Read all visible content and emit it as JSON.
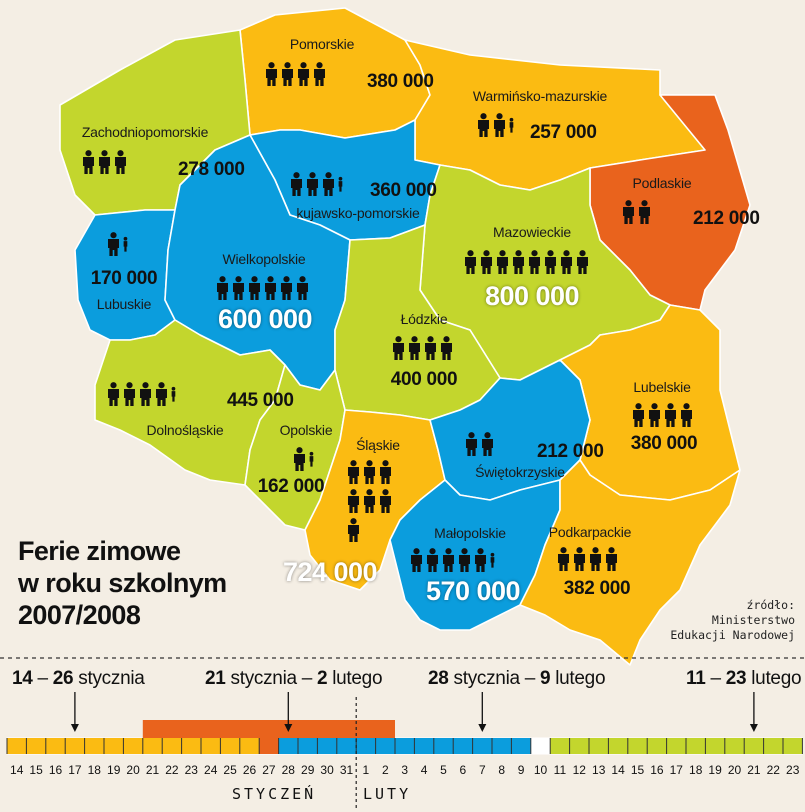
{
  "colors": {
    "yellow": "#fbbb12",
    "orange": "#e9631d",
    "blue": "#0b9ddd",
    "green": "#c3d62d",
    "ink": "#111111"
  },
  "title": {
    "line1": "Ferie zimowe",
    "line2": "w roku szkolnym",
    "line3": "2007/2008"
  },
  "source": {
    "line1": "źródło:",
    "line2": "Ministerstwo",
    "line3": "Edukacji Narodowej"
  },
  "regions": [
    {
      "id": "pomorskie",
      "name": "Pomorskie",
      "value": "380 000",
      "icons": 4,
      "color": "yellow"
    },
    {
      "id": "warminsko",
      "name": "Warmińsko-mazurskie",
      "value": "257 000",
      "icons": 2.5,
      "color": "yellow"
    },
    {
      "id": "zachodnio",
      "name": "Zachodniopomorskie",
      "value": "278 000",
      "icons": 3,
      "color": "green"
    },
    {
      "id": "kujawsko",
      "name": "kujawsko-pomorskie",
      "value": "360 000",
      "icons": 3.5,
      "color": "blue"
    },
    {
      "id": "podlaskie",
      "name": "Podlaskie",
      "value": "212 000",
      "icons": 2,
      "color": "orange"
    },
    {
      "id": "lubuskie",
      "name": "Lubuskie",
      "value": "170 000",
      "icons": 1.5,
      "color": "blue"
    },
    {
      "id": "wielkopolskie",
      "name": "Wielkopolskie",
      "value": "600 000",
      "icons": 6,
      "color": "blue"
    },
    {
      "id": "mazowieckie",
      "name": "Mazowieckie",
      "value": "800 000",
      "icons": 8,
      "color": "green"
    },
    {
      "id": "lodzkie",
      "name": "Łódzkie",
      "value": "400 000",
      "icons": 4,
      "color": "green"
    },
    {
      "id": "dolnoslaskie",
      "name": "Dolnośląskie",
      "value": "445 000",
      "icons": 4.5,
      "color": "green"
    },
    {
      "id": "lubelskie",
      "name": "Lubelskie",
      "value": "380 000",
      "icons": 4,
      "color": "yellow"
    },
    {
      "id": "opolskie",
      "name": "Opolskie",
      "value": "162 000",
      "icons": 1.5,
      "color": "green"
    },
    {
      "id": "slaskie",
      "name": "Śląskie",
      "value": "724 000",
      "icons": 7,
      "color": "yellow"
    },
    {
      "id": "swietokrzyskie",
      "name": "Świętokrzyskie",
      "value": "212 000",
      "icons": 2,
      "color": "blue"
    },
    {
      "id": "malopolskie",
      "name": "Małopolskie",
      "value": "570 000",
      "icons": 5.5,
      "color": "blue"
    },
    {
      "id": "podkarpackie",
      "name": "Podkarpackie",
      "value": "382 000",
      "icons": 4,
      "color": "yellow"
    }
  ],
  "periods": [
    {
      "start": "14",
      "sep": " – ",
      "end": "26",
      "month": " stycznia",
      "color": "yellow"
    },
    {
      "start": "21",
      "mid": " stycznia – ",
      "end": "2",
      "month": " lutego",
      "color": "orange"
    },
    {
      "start": "28",
      "mid": " stycznia – ",
      "end": "9",
      "month": " lutego",
      "color": "blue"
    },
    {
      "start": "11",
      "sep": " – ",
      "end": "23",
      "month": " lutego",
      "color": "green"
    }
  ],
  "timeline": {
    "days": [
      "14",
      "15",
      "16",
      "17",
      "18",
      "19",
      "20",
      "21",
      "22",
      "23",
      "24",
      "25",
      "26",
      "27",
      "28",
      "29",
      "30",
      "31",
      "1",
      "2",
      "3",
      "4",
      "5",
      "6",
      "7",
      "8",
      "9",
      "10",
      "11",
      "12",
      "13",
      "14",
      "15",
      "16",
      "17",
      "18",
      "19",
      "20",
      "21",
      "22",
      "23"
    ],
    "month1": "STYCZEŃ",
    "month2": "LUTY"
  }
}
